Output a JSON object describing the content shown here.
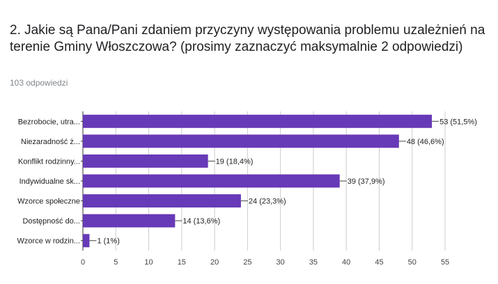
{
  "question": {
    "title": "2. Jakie są Pana/Pani zdaniem przyczyny występowania problemu uzależnień na terenie Gminy Włoszczowa? (prosimy zaznaczyć maksymalnie 2 odpowiedzi)",
    "responses": "103 odpowiedzi"
  },
  "chart_data": {
    "type": "bar",
    "orientation": "horizontal",
    "categories": [
      "Bezrobocie, utra...",
      "Niezaradność ż...",
      "Konflikt rodzinny...",
      "Indywidualne sk...",
      "Wzorce społeczne",
      "Dostępność do...",
      "Wzorce w rodzin..."
    ],
    "values": [
      53,
      48,
      19,
      39,
      24,
      14,
      1
    ],
    "value_labels": [
      "53 (51,5%)",
      "48 (46,6%)",
      "19 (18,4%)",
      "39 (37,9%)",
      "24 (23,3%)",
      "14 (13,6%)",
      "1 (1%)"
    ],
    "xlim": [
      0,
      55
    ],
    "xticks": [
      0,
      5,
      10,
      15,
      20,
      25,
      30,
      35,
      40,
      45,
      50,
      55
    ],
    "grid": true,
    "bar_color": "#673ab7"
  }
}
